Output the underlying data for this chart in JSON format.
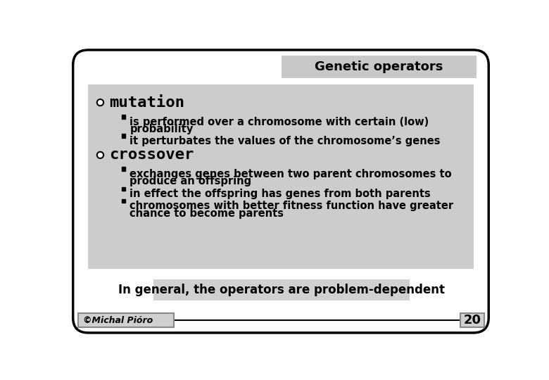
{
  "title_text": "Genetic operators",
  "bg_color": "#ffffff",
  "content_bg": "#cccccc",
  "title_bg": "#c8c8c8",
  "footer_bg": "#d0d0d0",
  "title_fontsize": 13,
  "section1_header": "mutation",
  "section2_header": "crossover",
  "section_fontsize": 16,
  "bullet1_line1": "is performed over a chromosome with certain (low)",
  "bullet1_line2": "probability",
  "bullet1b": "it perturbates the values of the chromosome’s genes",
  "bullet2_line1": "exchanges genes between two parent chromosomes to",
  "bullet2_line2": "produce an offspring",
  "bullet2b": "in effect the offspring has genes from both parents",
  "bullet2c_line1": "chromosomes with better fitness function have greater",
  "bullet2c_line2": "chance to become parents",
  "footer_text": "In general, the operators are problem-dependent",
  "footer_fontsize": 12,
  "credit_text": "©Michal Pióro",
  "page_number": "20",
  "bullet_fontsize": 10.5
}
